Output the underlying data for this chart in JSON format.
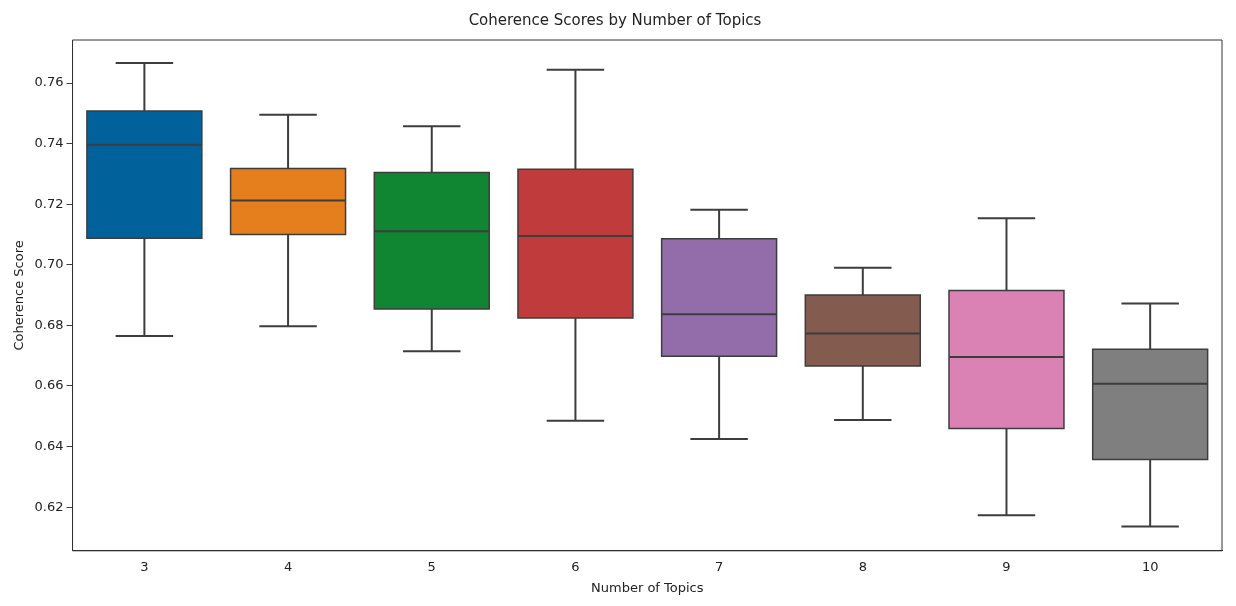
{
  "chart_data": {
    "type": "box",
    "title": "Coherence Scores by Number of Topics",
    "xlabel": "Number of Topics",
    "ylabel": "Coherence Score",
    "categories": [
      "3",
      "4",
      "5",
      "6",
      "7",
      "8",
      "9",
      "10"
    ],
    "colors": [
      "#01629b",
      "#e57f1d",
      "#108532",
      "#c03c3c",
      "#936daa",
      "#845b4f",
      "#d982b3",
      "#7f7f7f"
    ],
    "boxes": [
      {
        "low": 0.6765,
        "q1": 0.7088,
        "median": 0.7396,
        "q3": 0.7508,
        "high": 0.7666
      },
      {
        "low": 0.6797,
        "q1": 0.71,
        "median": 0.7212,
        "q3": 0.7318,
        "high": 0.7495
      },
      {
        "low": 0.6715,
        "q1": 0.6854,
        "median": 0.7111,
        "q3": 0.7305,
        "high": 0.7457
      },
      {
        "low": 0.6485,
        "q1": 0.6824,
        "median": 0.7095,
        "q3": 0.7315,
        "high": 0.7644
      },
      {
        "low": 0.6425,
        "q1": 0.6698,
        "median": 0.6837,
        "q3": 0.7086,
        "high": 0.7182
      },
      {
        "low": 0.6488,
        "q1": 0.6666,
        "median": 0.6773,
        "q3": 0.69,
        "high": 0.699
      },
      {
        "low": 0.6173,
        "q1": 0.646,
        "median": 0.6696,
        "q3": 0.6915,
        "high": 0.7154
      },
      {
        "low": 0.6136,
        "q1": 0.6357,
        "median": 0.6607,
        "q3": 0.6721,
        "high": 0.6872
      }
    ],
    "ylim": [
      0.6056,
      0.7742
    ],
    "yticks": [
      {
        "value": 0.62,
        "label": "0.62"
      },
      {
        "value": 0.64,
        "label": "0.64"
      },
      {
        "value": 0.66,
        "label": "0.66"
      },
      {
        "value": 0.68,
        "label": "0.68"
      },
      {
        "value": 0.7,
        "label": "0.70"
      },
      {
        "value": 0.72,
        "label": "0.72"
      },
      {
        "value": 0.74,
        "label": "0.74"
      },
      {
        "value": 0.76,
        "label": "0.76"
      }
    ],
    "grid": false,
    "legend": false
  }
}
